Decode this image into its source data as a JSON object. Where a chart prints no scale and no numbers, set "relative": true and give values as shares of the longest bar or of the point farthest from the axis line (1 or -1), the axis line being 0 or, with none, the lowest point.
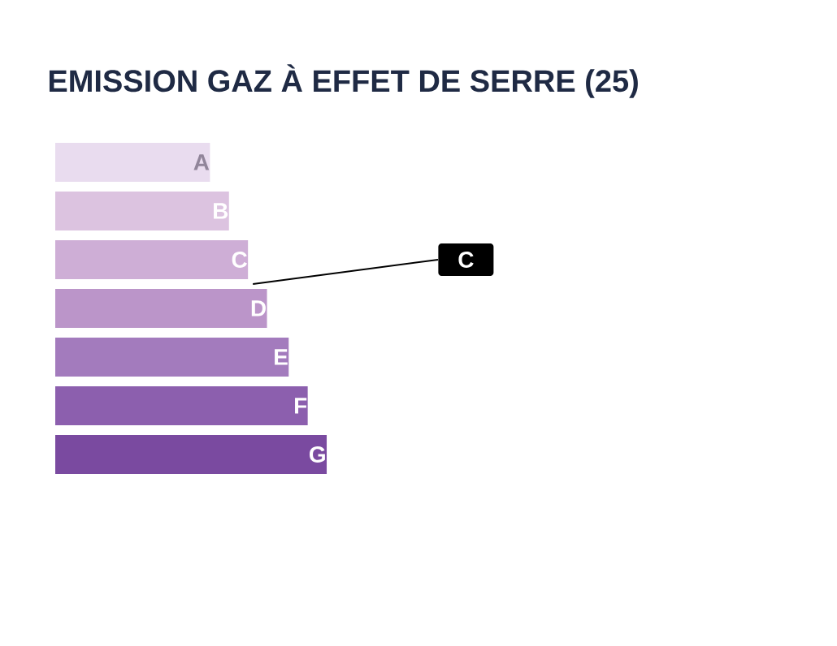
{
  "chart_data": {
    "type": "bar",
    "orientation": "horizontal",
    "relative": true,
    "title": "EMISSION GAZ À EFFET DE SERRE (25)",
    "categories": [
      "A",
      "B",
      "C",
      "D",
      "E",
      "F",
      "G"
    ],
    "values": [
      0.57,
      0.64,
      0.71,
      0.78,
      0.86,
      0.93,
      1
    ],
    "colors": [
      "#e9dcef",
      "#dcc3e0",
      "#ceaed6",
      "#bb95c9",
      "#a37bbd",
      "#8c5fae",
      "#7a4aa0"
    ],
    "annotations": [
      "C"
    ]
  }
}
